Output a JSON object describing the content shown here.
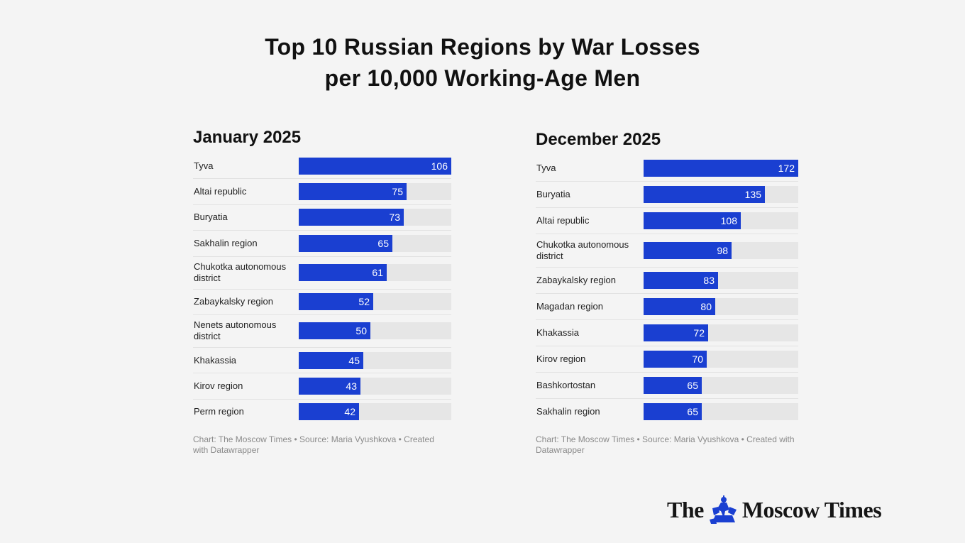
{
  "title": {
    "line1": "Top 10 Russian Regions by War Losses",
    "line2": "per 10,000 Working-Age Men"
  },
  "chart_data": [
    {
      "type": "bar",
      "orientation": "horizontal",
      "title": "January 2025",
      "xlim": [
        0,
        106
      ],
      "categories": [
        "Tyva",
        "Altai republic",
        "Buryatia",
        "Sakhalin region",
        "Chukotka autonomous district",
        "Zabaykalsky region",
        "Nenets autonomous district",
        "Khakassia",
        "Kirov region",
        "Perm region"
      ],
      "values": [
        106,
        75,
        73,
        65,
        61,
        52,
        50,
        45,
        43,
        42
      ],
      "footnote": "Chart: The Moscow Times • Source: Maria Vyushkova • Created with Datawrapper"
    },
    {
      "type": "bar",
      "orientation": "horizontal",
      "title": "December 2025",
      "xlim": [
        0,
        172
      ],
      "categories": [
        "Tyva",
        "Buryatia",
        "Altai republic",
        "Chukotka autonomous district",
        "Zabaykalsky region",
        "Magadan region",
        "Khakassia",
        "Kirov region",
        "Bashkortostan",
        "Sakhalin region"
      ],
      "values": [
        172,
        135,
        108,
        98,
        83,
        80,
        72,
        70,
        65,
        65
      ],
      "footnote": "Chart: The Moscow Times • Source: Maria Vyushkova • Created with Datawrapper"
    }
  ],
  "colors": {
    "bar": "#1a3fd1",
    "track": "#e6e6e6",
    "background": "#f4f4f4"
  },
  "logo": {
    "word1": "The",
    "word2": "Moscow Times",
    "emblem": "st-george-emblem"
  }
}
